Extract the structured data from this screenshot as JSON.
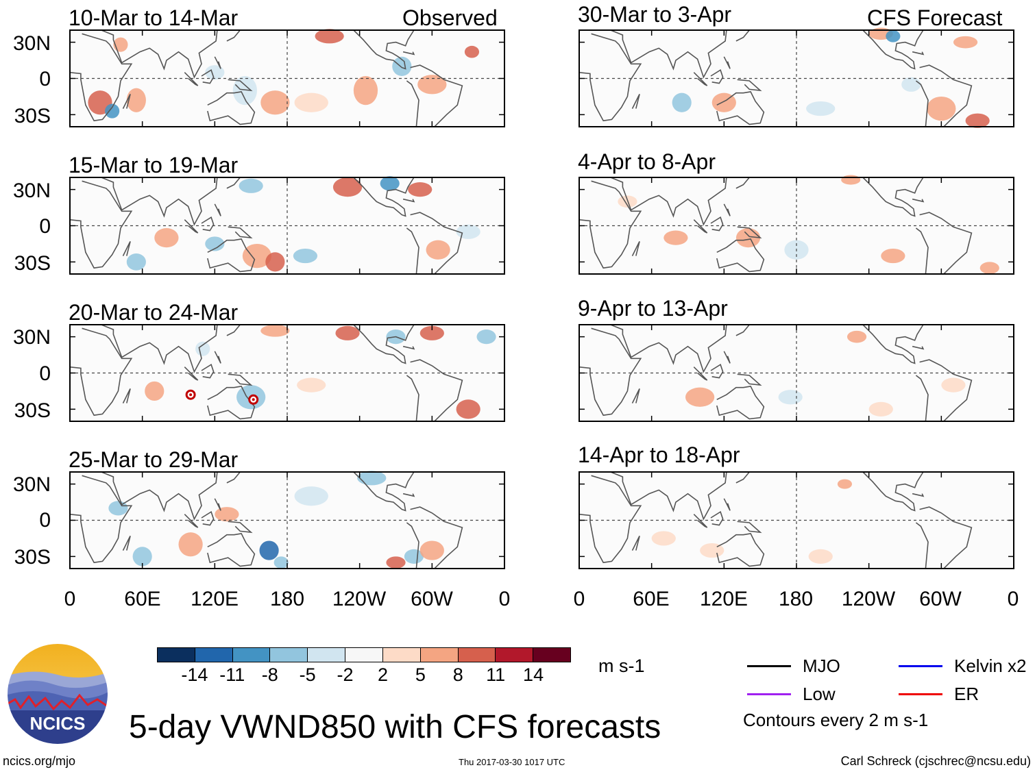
{
  "figure": {
    "title": "5-day VWND850 with CFS forecasts",
    "left_column_label": "Observed",
    "right_column_label": "CFS Forecast",
    "units": "m s-1",
    "contour_note": "Contours every 2 m s-1",
    "website": "ncics.org/mjo",
    "timestamp": "Thu 2017-03-30 1017 UTC",
    "credit": "Carl Schreck (cjschrec@ncsu.edu)",
    "logo_text": "NCICS"
  },
  "axes": {
    "y_ticks": [
      "30N",
      "0",
      "30S"
    ],
    "x_ticks": [
      "0",
      "60E",
      "120E",
      "180",
      "120W",
      "60W",
      "0"
    ]
  },
  "panels": {
    "left": [
      {
        "period": "10-Mar to 14-Mar"
      },
      {
        "period": "15-Mar to 19-Mar"
      },
      {
        "period": "20-Mar to 24-Mar"
      },
      {
        "period": "25-Mar to 29-Mar"
      }
    ],
    "right": [
      {
        "period": "30-Mar to 3-Apr"
      },
      {
        "period": "4-Apr to 8-Apr"
      },
      {
        "period": "9-Apr to 13-Apr"
      },
      {
        "period": "14-Apr to 18-Apr"
      }
    ]
  },
  "colorbar": {
    "labels": [
      "-14",
      "-11",
      "-8",
      "-5",
      "-2",
      "2",
      "5",
      "8",
      "11",
      "14"
    ],
    "colors": [
      "#0b2f5e",
      "#2166ac",
      "#4393c3",
      "#92c5de",
      "#d1e5f0",
      "#f7f7f7",
      "#fddbc7",
      "#f4a582",
      "#d6604d",
      "#b2182b",
      "#67001f"
    ]
  },
  "legend": {
    "items": [
      {
        "label": "MJO",
        "color": "#000000"
      },
      {
        "label": "Kelvin x2",
        "color": "#0000ee"
      },
      {
        "label": "Low",
        "color": "#a020f0"
      },
      {
        "label": "ER",
        "color": "#ee0000"
      }
    ]
  },
  "cyclone_markers": [
    {
      "panel": "20-Mar to 24-Mar",
      "lon": 100,
      "lat": -18
    },
    {
      "panel": "20-Mar to 24-Mar",
      "lon": 152,
      "lat": -22
    }
  ]
}
